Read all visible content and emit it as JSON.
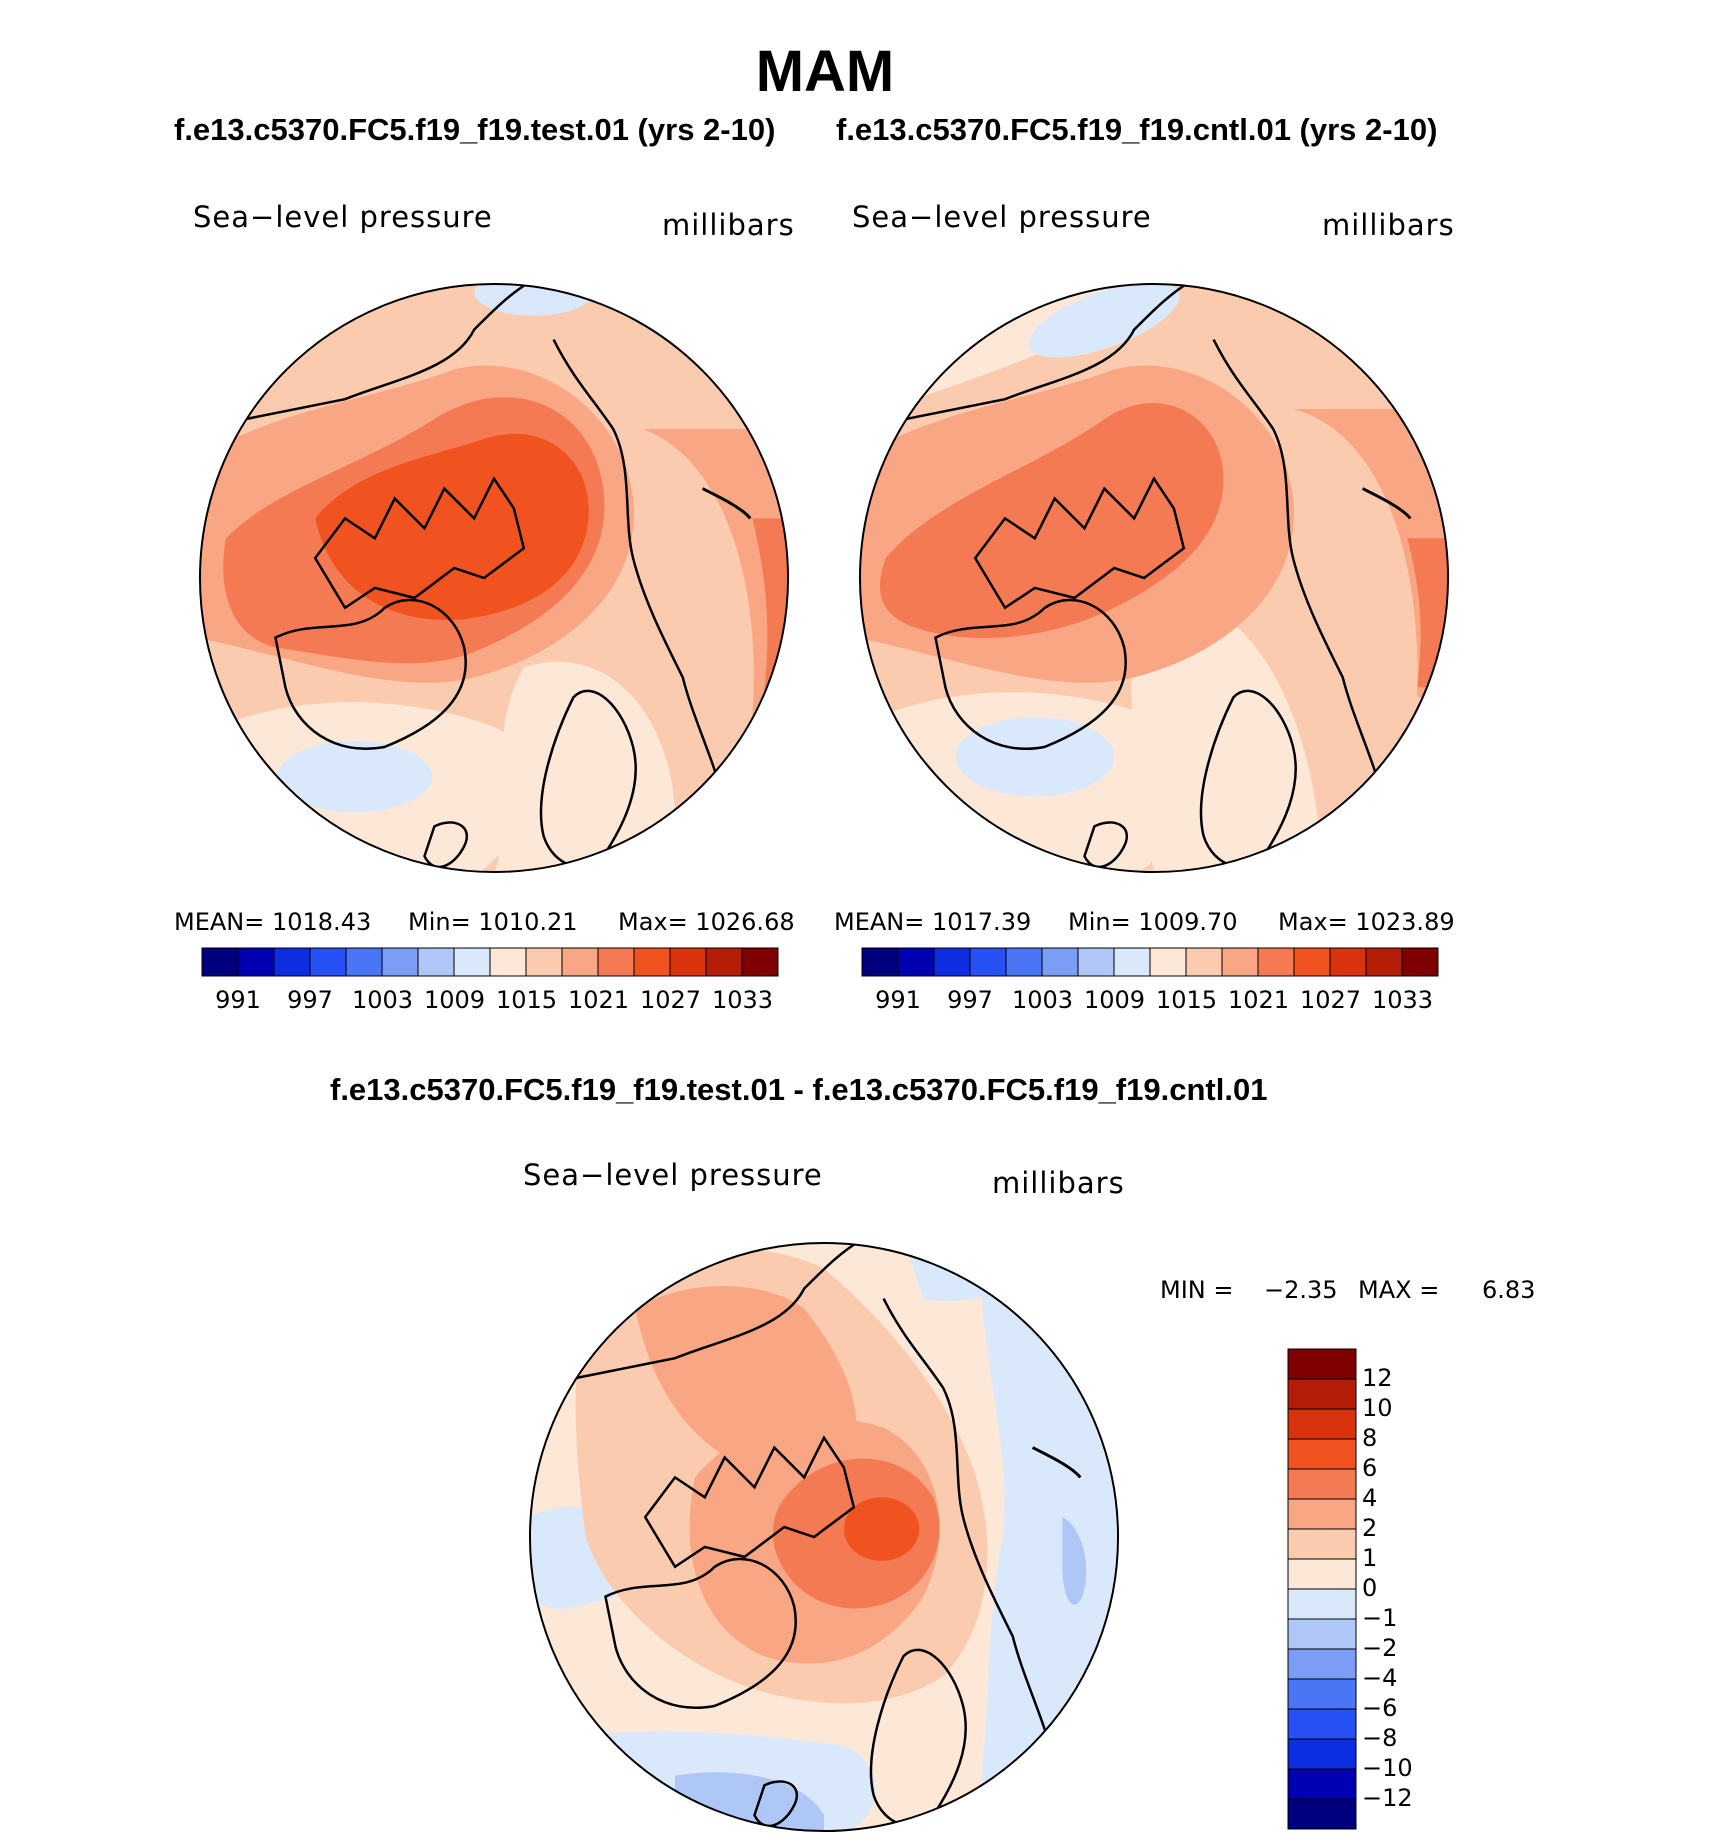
{
  "figure": {
    "title": "MAM",
    "run_titles": {
      "test": "f.e13.c5370.FC5.f19_f19.test.01 (yrs 2-10)",
      "cntl": "f.e13.c5370.FC5.f19_f19.cntl.01 (yrs 2-10)",
      "diff": "f.e13.c5370.FC5.f19_f19.test.01 - f.e13.c5370.FC5.f19_f19.cntl.01"
    }
  },
  "panels": {
    "test": {
      "variable_label": "Sea−level pressure",
      "units_label": "millibars",
      "stats_mean": "MEAN=  1018.43",
      "stats_min": "Min=  1010.21",
      "stats_max": "Max=  1026.68"
    },
    "cntl": {
      "variable_label": "Sea−level pressure",
      "units_label": "millibars",
      "stats_mean": "MEAN=  1017.39",
      "stats_min": "Min=  1009.70",
      "stats_max": "Max=  1023.89"
    },
    "diff": {
      "variable_label": "Sea−level pressure",
      "units_label": "millibars",
      "min_label": "MIN  =",
      "min_value": "−2.35",
      "max_label": "MAX  =",
      "max_value": "6.83"
    }
  },
  "colorbars": {
    "absolute": {
      "colors": [
        "#00007f",
        "#0000b2",
        "#0d2de0",
        "#2750f5",
        "#4a75f5",
        "#7c9df5",
        "#aec7f7",
        "#d9e8fb",
        "#fde7d7",
        "#fbcbb0",
        "#f8a683",
        "#f37a52",
        "#f0531f",
        "#d8330d",
        "#b41e08",
        "#7f0000"
      ],
      "tick_labels": [
        "991",
        "997",
        "1003",
        "1009",
        "1015",
        "1021",
        "1027",
        "1033"
      ]
    },
    "difference": {
      "colors": [
        "#7f0000",
        "#b41e08",
        "#d8330d",
        "#f0531f",
        "#f37a52",
        "#f8a683",
        "#fbcbb0",
        "#fde7d7",
        "#d9e8fb",
        "#aec7f7",
        "#7c9df5",
        "#4a75f5",
        "#2750f5",
        "#0d2de0",
        "#0000b2",
        "#00007f"
      ],
      "tick_labels": [
        "12",
        "10",
        "8",
        "6",
        "4",
        "2",
        "1",
        "0",
        "−1",
        "−2",
        "−4",
        "−6",
        "−8",
        "−10",
        "−12"
      ]
    }
  },
  "colors": {
    "neg_light": "#d9e8fb",
    "neg_mid": "#aec7f7",
    "neg_strong": "#7c9df5",
    "pos_0": "#fde7d7",
    "pos_1": "#fbcbb0",
    "pos_2": "#f8a683",
    "pos_3": "#f37a52",
    "pos_4": "#f0531f",
    "coast": "#000000"
  }
}
